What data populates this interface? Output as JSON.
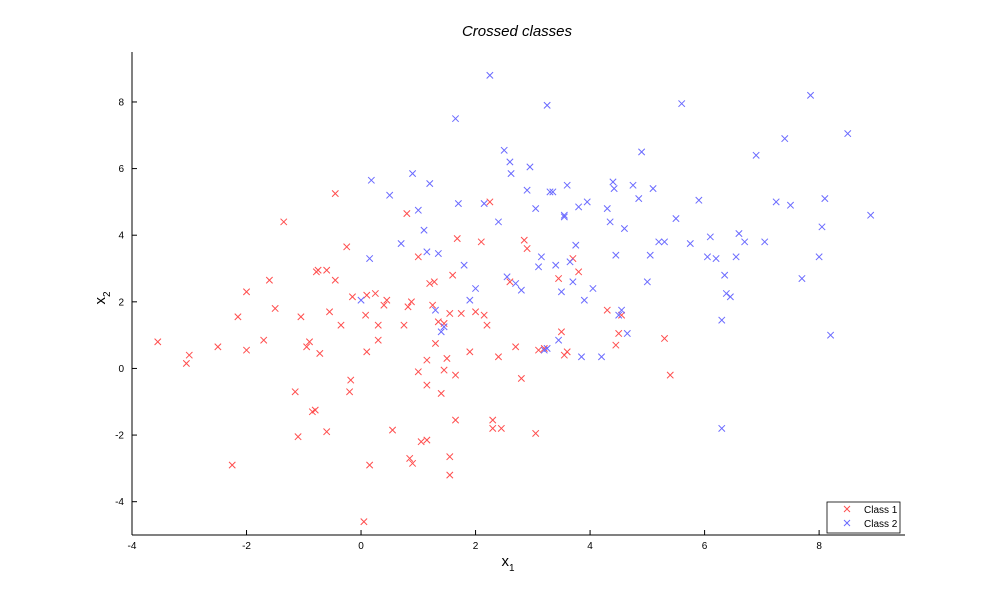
{
  "chart_data": {
    "type": "scatter",
    "title": "Crossed classes",
    "xlabel": {
      "base": "x",
      "sub": "1"
    },
    "ylabel": {
      "base": "x",
      "sub": "2"
    },
    "xlim": [
      -4,
      9.5
    ],
    "ylim": [
      -5,
      9.5
    ],
    "xticks": [
      -4,
      -2,
      0,
      2,
      4,
      6,
      8
    ],
    "yticks": [
      -4,
      -2,
      0,
      2,
      4,
      6,
      8
    ],
    "grid": false,
    "legend": {
      "position": "bottom-right"
    },
    "series": [
      {
        "name": "Class 1",
        "color": "#ff4d4d",
        "marker": "x",
        "points": [
          [
            -3.55,
            0.8
          ],
          [
            -3.05,
            0.15
          ],
          [
            -3.0,
            0.4
          ],
          [
            -2.5,
            0.65
          ],
          [
            -2.25,
            -2.9
          ],
          [
            -2.15,
            1.55
          ],
          [
            -2.0,
            2.3
          ],
          [
            -2.0,
            0.55
          ],
          [
            -1.7,
            0.85
          ],
          [
            -1.6,
            2.65
          ],
          [
            -1.5,
            1.8
          ],
          [
            -1.35,
            4.4
          ],
          [
            -1.15,
            -0.7
          ],
          [
            -1.1,
            -2.05
          ],
          [
            -1.05,
            1.55
          ],
          [
            -0.95,
            0.65
          ],
          [
            -0.9,
            0.8
          ],
          [
            -0.85,
            -1.3
          ],
          [
            -0.8,
            -1.25
          ],
          [
            -0.78,
            2.9
          ],
          [
            -0.75,
            2.95
          ],
          [
            -0.72,
            0.45
          ],
          [
            -0.6,
            -1.9
          ],
          [
            -0.6,
            2.95
          ],
          [
            -0.55,
            1.7
          ],
          [
            -0.45,
            5.25
          ],
          [
            -0.45,
            2.65
          ],
          [
            -0.35,
            1.3
          ],
          [
            -0.25,
            3.65
          ],
          [
            -0.2,
            -0.7
          ],
          [
            -0.18,
            -0.35
          ],
          [
            -0.15,
            2.15
          ],
          [
            0.05,
            -4.6
          ],
          [
            0.08,
            1.6
          ],
          [
            0.1,
            2.2
          ],
          [
            0.1,
            0.5
          ],
          [
            0.15,
            -2.9
          ],
          [
            0.25,
            2.25
          ],
          [
            0.3,
            1.3
          ],
          [
            0.3,
            0.85
          ],
          [
            0.4,
            1.9
          ],
          [
            0.45,
            2.05
          ],
          [
            0.55,
            -1.85
          ],
          [
            0.75,
            1.3
          ],
          [
            0.8,
            4.65
          ],
          [
            0.82,
            1.85
          ],
          [
            0.85,
            -2.7
          ],
          [
            0.88,
            2.0
          ],
          [
            0.9,
            -2.85
          ],
          [
            1.0,
            -0.1
          ],
          [
            1.0,
            3.35
          ],
          [
            1.05,
            -2.2
          ],
          [
            1.15,
            -2.15
          ],
          [
            1.15,
            0.25
          ],
          [
            1.15,
            -0.5
          ],
          [
            1.2,
            2.55
          ],
          [
            1.25,
            1.9
          ],
          [
            1.28,
            2.6
          ],
          [
            1.3,
            0.75
          ],
          [
            1.35,
            1.4
          ],
          [
            1.4,
            -0.75
          ],
          [
            1.45,
            -0.05
          ],
          [
            1.45,
            1.35
          ],
          [
            1.5,
            0.3
          ],
          [
            1.55,
            -3.2
          ],
          [
            1.55,
            -2.65
          ],
          [
            1.55,
            1.65
          ],
          [
            1.6,
            2.8
          ],
          [
            1.65,
            -0.2
          ],
          [
            1.65,
            -1.55
          ],
          [
            1.68,
            3.9
          ],
          [
            1.75,
            1.65
          ],
          [
            1.9,
            0.5
          ],
          [
            2.0,
            1.7
          ],
          [
            2.1,
            3.8
          ],
          [
            2.15,
            1.6
          ],
          [
            2.2,
            1.3
          ],
          [
            2.25,
            5.0
          ],
          [
            2.3,
            -1.55
          ],
          [
            2.3,
            -1.8
          ],
          [
            2.4,
            0.35
          ],
          [
            2.45,
            -1.8
          ],
          [
            2.6,
            2.6
          ],
          [
            2.7,
            0.65
          ],
          [
            2.8,
            -0.3
          ],
          [
            2.85,
            3.85
          ],
          [
            2.9,
            3.6
          ],
          [
            3.05,
            -1.95
          ],
          [
            3.1,
            0.55
          ],
          [
            3.2,
            0.6
          ],
          [
            3.45,
            2.7
          ],
          [
            3.5,
            1.1
          ],
          [
            3.55,
            0.4
          ],
          [
            3.6,
            0.5
          ],
          [
            3.7,
            3.3
          ],
          [
            3.8,
            2.9
          ],
          [
            4.3,
            1.75
          ],
          [
            4.45,
            0.7
          ],
          [
            4.5,
            1.05
          ],
          [
            4.55,
            1.6
          ],
          [
            5.3,
            0.9
          ],
          [
            5.4,
            -0.2
          ]
        ]
      },
      {
        "name": "Class 2",
        "color": "#6a6aff",
        "marker": "x",
        "points": [
          [
            0.0,
            2.05
          ],
          [
            0.15,
            3.3
          ],
          [
            0.18,
            5.65
          ],
          [
            0.5,
            5.2
          ],
          [
            0.7,
            3.75
          ],
          [
            0.9,
            5.85
          ],
          [
            1.0,
            4.75
          ],
          [
            1.1,
            4.15
          ],
          [
            1.15,
            3.5
          ],
          [
            1.2,
            5.55
          ],
          [
            1.3,
            1.75
          ],
          [
            1.35,
            3.45
          ],
          [
            1.4,
            1.1
          ],
          [
            1.45,
            1.25
          ],
          [
            1.65,
            7.5
          ],
          [
            1.7,
            4.95
          ],
          [
            1.8,
            3.1
          ],
          [
            1.9,
            2.05
          ],
          [
            2.0,
            2.4
          ],
          [
            2.15,
            4.95
          ],
          [
            2.25,
            8.8
          ],
          [
            2.4,
            4.4
          ],
          [
            2.5,
            6.55
          ],
          [
            2.55,
            2.75
          ],
          [
            2.6,
            6.2
          ],
          [
            2.62,
            5.85
          ],
          [
            2.7,
            2.55
          ],
          [
            2.8,
            2.35
          ],
          [
            2.9,
            5.35
          ],
          [
            2.95,
            6.05
          ],
          [
            3.05,
            4.8
          ],
          [
            3.1,
            3.05
          ],
          [
            3.15,
            3.35
          ],
          [
            3.2,
            0.55
          ],
          [
            3.25,
            0.6
          ],
          [
            3.25,
            7.9
          ],
          [
            3.3,
            5.3
          ],
          [
            3.35,
            5.3
          ],
          [
            3.4,
            3.1
          ],
          [
            3.45,
            0.85
          ],
          [
            3.5,
            2.3
          ],
          [
            3.55,
            4.55
          ],
          [
            3.55,
            4.6
          ],
          [
            3.6,
            5.5
          ],
          [
            3.65,
            3.2
          ],
          [
            3.7,
            2.6
          ],
          [
            3.75,
            3.7
          ],
          [
            3.8,
            4.85
          ],
          [
            3.85,
            0.35
          ],
          [
            3.9,
            2.05
          ],
          [
            3.95,
            5.0
          ],
          [
            4.05,
            2.4
          ],
          [
            4.2,
            0.35
          ],
          [
            4.3,
            4.8
          ],
          [
            4.35,
            4.4
          ],
          [
            4.4,
            5.6
          ],
          [
            4.42,
            5.4
          ],
          [
            4.45,
            3.4
          ],
          [
            4.5,
            1.6
          ],
          [
            4.55,
            1.75
          ],
          [
            4.6,
            4.2
          ],
          [
            4.65,
            1.05
          ],
          [
            4.75,
            5.5
          ],
          [
            4.85,
            5.1
          ],
          [
            4.9,
            6.5
          ],
          [
            5.0,
            2.6
          ],
          [
            5.05,
            3.4
          ],
          [
            5.1,
            5.4
          ],
          [
            5.2,
            3.8
          ],
          [
            5.3,
            3.8
          ],
          [
            5.5,
            4.5
          ],
          [
            5.6,
            7.95
          ],
          [
            5.75,
            3.75
          ],
          [
            5.9,
            5.05
          ],
          [
            6.05,
            3.35
          ],
          [
            6.1,
            3.95
          ],
          [
            6.2,
            3.3
          ],
          [
            6.3,
            1.45
          ],
          [
            6.3,
            -1.8
          ],
          [
            6.35,
            2.8
          ],
          [
            6.38,
            2.25
          ],
          [
            6.45,
            2.15
          ],
          [
            6.55,
            3.35
          ],
          [
            6.6,
            4.05
          ],
          [
            6.7,
            3.8
          ],
          [
            6.9,
            6.4
          ],
          [
            7.05,
            3.8
          ],
          [
            7.25,
            5.0
          ],
          [
            7.4,
            6.9
          ],
          [
            7.5,
            4.9
          ],
          [
            7.7,
            2.7
          ],
          [
            7.85,
            8.2
          ],
          [
            8.0,
            3.35
          ],
          [
            8.05,
            4.25
          ],
          [
            8.1,
            5.1
          ],
          [
            8.2,
            1.0
          ],
          [
            8.5,
            7.05
          ],
          [
            8.9,
            4.6
          ]
        ]
      }
    ]
  }
}
